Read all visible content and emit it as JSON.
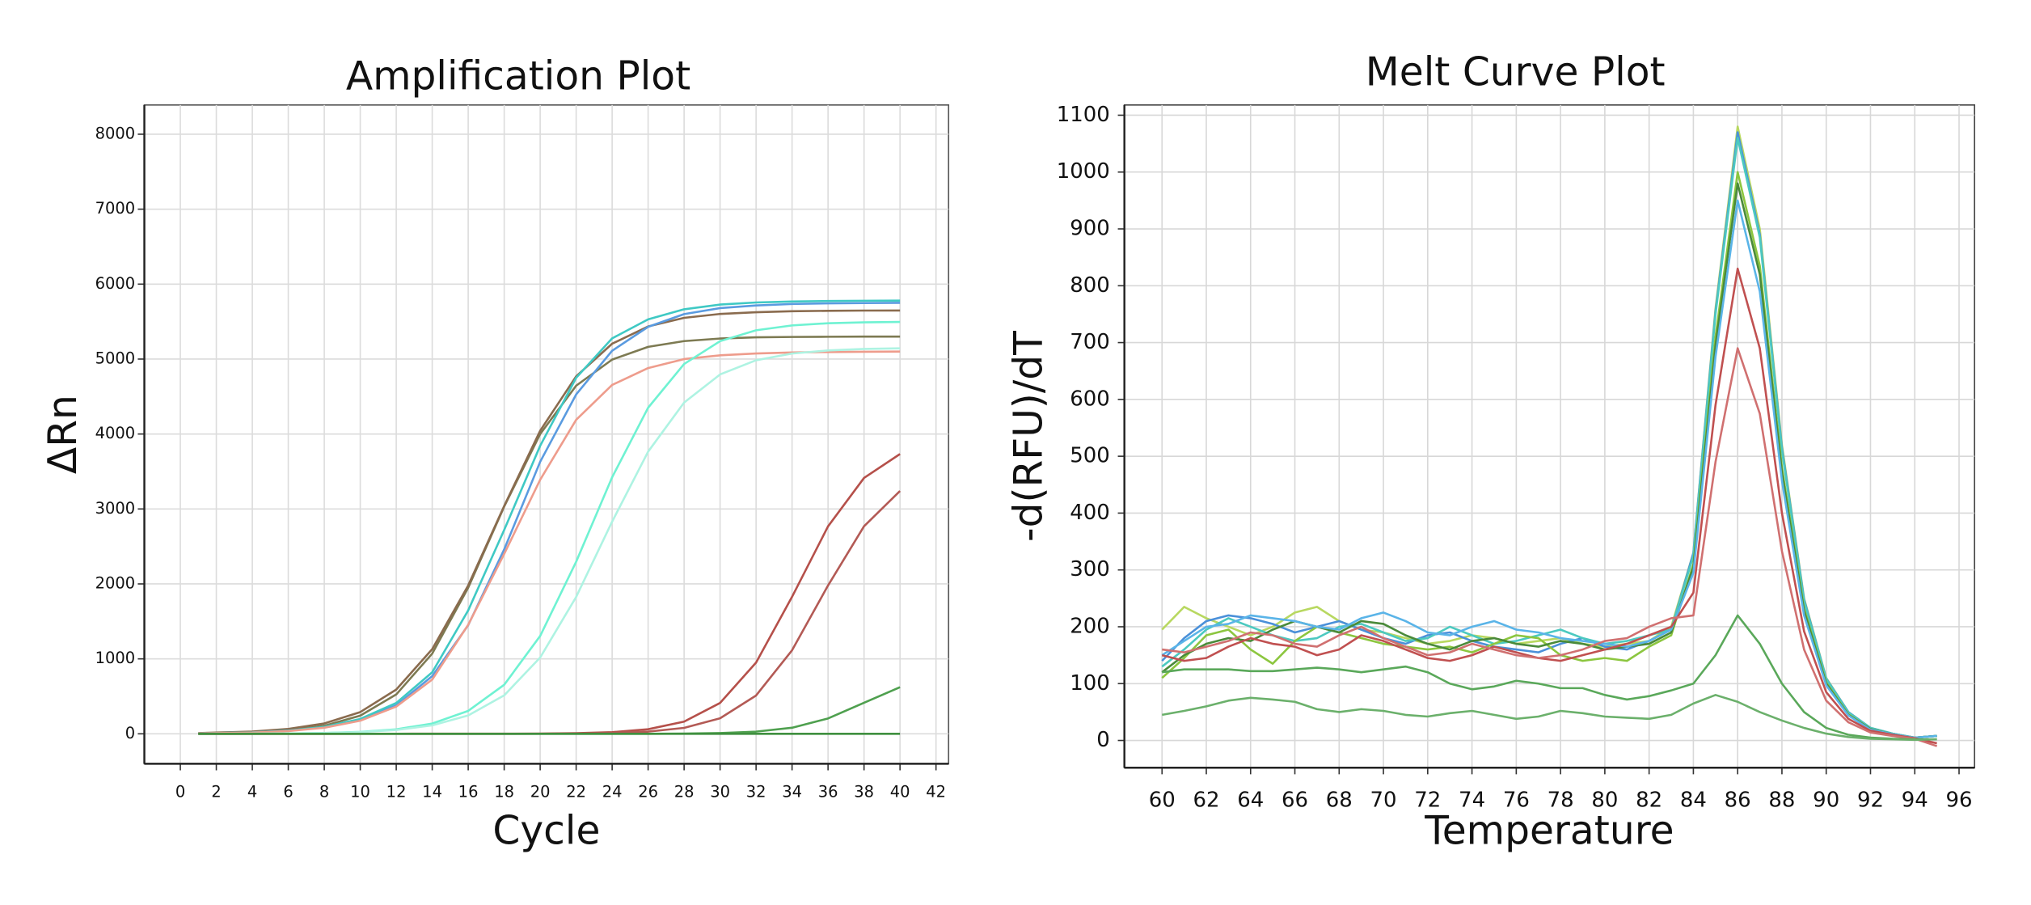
{
  "chart_data": [
    {
      "type": "line",
      "title": "Amplification Plot",
      "x_label": "Cycle",
      "y_label": "ΔRn",
      "x": [
        1,
        4,
        6,
        8,
        10,
        12,
        14,
        16,
        18,
        20,
        22,
        24,
        26,
        28,
        30,
        32,
        34,
        36,
        38,
        40
      ],
      "xlim": [
        -2,
        42.7
      ],
      "ylim": [
        -400,
        8390
      ],
      "xticks": [
        0,
        2,
        4,
        6,
        8,
        10,
        12,
        14,
        16,
        18,
        20,
        22,
        24,
        26,
        28,
        30,
        32,
        34,
        36,
        38,
        40,
        42
      ],
      "yticks": [
        0,
        1000,
        2000,
        3000,
        4000,
        5000,
        6000,
        7000,
        8000
      ],
      "grid": true,
      "series": [
        {
          "color": "#7d7a52",
          "values": [
            6,
            21,
            47,
            108,
            242,
            525,
            1070,
            1950,
            3032,
            4000,
            4645,
            4993,
            5163,
            5240,
            5274,
            5290,
            5295,
            5298,
            5300,
            5300
          ]
        },
        {
          "color": "#8a6b4e",
          "values": [
            10,
            30,
            65,
            138,
            290,
            590,
            1130,
            1980,
            3040,
            4044,
            4770,
            5205,
            5435,
            5550,
            5602,
            5625,
            5638,
            5644,
            5647,
            5648
          ]
        },
        {
          "color": "#5a9be0",
          "values": [
            6,
            18,
            42,
            88,
            185,
            380,
            770,
            1450,
            2460,
            3630,
            4528,
            5111,
            5430,
            5600,
            5680,
            5715,
            5735,
            5743,
            5747,
            5750
          ]
        },
        {
          "color": "#3fc9c4",
          "values": [
            6,
            19,
            42,
            92,
            198,
            411,
            821,
            1647,
            2720,
            3843,
            4750,
            5276,
            5530,
            5664,
            5727,
            5755,
            5768,
            5775,
            5778,
            5780
          ]
        },
        {
          "color": "#ee9c8c",
          "values": [
            5,
            17,
            37,
            81,
            175,
            363,
            724,
            1455,
            2400,
            3390,
            4190,
            4655,
            4880,
            5000,
            5050,
            5075,
            5088,
            5094,
            5097,
            5100
          ]
        },
        {
          "color": "#6ff2d2",
          "values": [
            0,
            2,
            5,
            11,
            26,
            60,
            137,
            306,
            654,
            1306,
            2296,
            3423,
            4351,
            4934,
            5239,
            5384,
            5449,
            5478,
            5490,
            5495
          ]
        },
        {
          "color": "#aef3e2",
          "values": [
            0,
            2,
            5,
            10,
            23,
            51,
            113,
            245,
            513,
            1018,
            1826,
            2831,
            3765,
            4420,
            4795,
            4984,
            5074,
            5115,
            5135,
            5143
          ]
        },
        {
          "color": "#b5504a",
          "values": [
            0,
            0,
            0,
            0,
            1,
            1,
            2,
            2,
            2,
            3,
            8,
            22,
            61,
            163,
            412,
            950,
            1828,
            2768,
            3414,
            3733
          ]
        },
        {
          "color": "#b35a55",
          "values": [
            0,
            0,
            0,
            0,
            0,
            0,
            0,
            0,
            0,
            1,
            4,
            11,
            29,
            79,
            207,
            511,
            1115,
            1979,
            2769,
            3240
          ]
        },
        {
          "color": "#4fa04f",
          "values": [
            0,
            0,
            0,
            0,
            0,
            0,
            0,
            0,
            0,
            0,
            0,
            0,
            0,
            3,
            10,
            29,
            81,
            205,
            415,
            622
          ]
        },
        {
          "color": "#3f8f3f",
          "values": [
            0,
            0,
            0,
            0,
            0,
            0,
            0,
            0,
            0,
            0,
            0,
            0,
            0,
            0,
            0,
            0,
            0,
            0,
            0,
            0
          ]
        }
      ]
    },
    {
      "type": "line",
      "title": "Melt Curve Plot",
      "x_label": "Temperature",
      "y_label": "-d(RFU)/dT",
      "x": [
        60,
        61,
        62,
        63,
        64,
        65,
        66,
        67,
        68,
        69,
        70,
        71,
        72,
        73,
        74,
        75,
        76,
        77,
        78,
        79,
        80,
        81,
        82,
        83,
        84,
        85,
        86,
        87,
        88,
        89,
        90,
        91,
        92,
        93,
        94,
        95
      ],
      "xlim": [
        58.3,
        96.7
      ],
      "ylim": [
        -48,
        1118
      ],
      "xticks": [
        60,
        62,
        64,
        66,
        68,
        70,
        72,
        74,
        76,
        78,
        80,
        82,
        84,
        86,
        88,
        90,
        92,
        94,
        96
      ],
      "yticks": [
        0,
        100,
        200,
        300,
        400,
        500,
        600,
        700,
        800,
        900,
        1000,
        1100
      ],
      "grid": true,
      "series": [
        {
          "color": "#b8d860",
          "values": [
            195,
            235,
            215,
            200,
            185,
            200,
            225,
            235,
            210,
            195,
            190,
            180,
            170,
            175,
            185,
            180,
            170,
            175,
            180,
            170,
            165,
            170,
            175,
            200,
            330,
            760,
            1080,
            900,
            520,
            250,
            110,
            50,
            22,
            12,
            5,
            8
          ]
        },
        {
          "color": "#4a90d9",
          "values": [
            140,
            180,
            210,
            220,
            215,
            205,
            190,
            200,
            210,
            195,
            180,
            170,
            185,
            190,
            175,
            165,
            160,
            155,
            170,
            180,
            165,
            160,
            175,
            195,
            330,
            755,
            1070,
            890,
            515,
            248,
            109,
            50,
            22,
            12,
            5,
            8
          ]
        },
        {
          "color": "#4cc9c0",
          "values": [
            130,
            160,
            195,
            215,
            200,
            185,
            175,
            180,
            200,
            205,
            190,
            175,
            180,
            200,
            185,
            170,
            175,
            185,
            195,
            180,
            170,
            175,
            185,
            195,
            325,
            750,
            1060,
            885,
            510,
            245,
            108,
            49,
            22,
            12,
            5,
            8
          ]
        },
        {
          "color": "#8cc63f",
          "values": [
            110,
            145,
            185,
            195,
            160,
            135,
            175,
            200,
            190,
            180,
            170,
            165,
            160,
            165,
            155,
            170,
            185,
            180,
            150,
            140,
            145,
            140,
            165,
            185,
            310,
            710,
            1000,
            835,
            480,
            232,
            102,
            46,
            20,
            11,
            5,
            8
          ]
        },
        {
          "color": "#4a8a3a",
          "values": [
            120,
            150,
            170,
            180,
            175,
            195,
            210,
            200,
            190,
            210,
            205,
            185,
            170,
            160,
            175,
            180,
            170,
            165,
            175,
            170,
            160,
            165,
            170,
            190,
            305,
            695,
            980,
            820,
            472,
            228,
            100,
            45,
            20,
            11,
            5,
            8
          ]
        },
        {
          "color": "#5ab4e8",
          "values": [
            150,
            175,
            200,
            205,
            220,
            215,
            210,
            200,
            195,
            215,
            225,
            210,
            190,
            185,
            200,
            210,
            195,
            190,
            180,
            175,
            170,
            165,
            175,
            195,
            295,
            675,
            950,
            790,
            457,
            220,
            97,
            44,
            19,
            11,
            5,
            8
          ]
        },
        {
          "color": "#c05050",
          "values": [
            150,
            140,
            145,
            165,
            180,
            170,
            165,
            150,
            160,
            185,
            175,
            160,
            145,
            140,
            150,
            165,
            155,
            145,
            140,
            150,
            160,
            170,
            185,
            200,
            260,
            590,
            830,
            690,
            400,
            192,
            85,
            38,
            17,
            10,
            4,
            -5
          ]
        },
        {
          "color": "#d07070",
          "values": [
            160,
            155,
            165,
            175,
            190,
            185,
            170,
            165,
            185,
            200,
            180,
            165,
            150,
            155,
            170,
            160,
            150,
            145,
            150,
            160,
            175,
            180,
            200,
            215,
            220,
            490,
            690,
            575,
            333,
            160,
            70,
            32,
            14,
            8,
            3,
            -10
          ]
        },
        {
          "color": "#5aa85a",
          "values": [
            120,
            125,
            125,
            125,
            122,
            122,
            125,
            128,
            125,
            120,
            125,
            130,
            120,
            100,
            90,
            95,
            105,
            100,
            92,
            92,
            80,
            72,
            78,
            88,
            100,
            150,
            220,
            170,
            100,
            50,
            22,
            10,
            5,
            3,
            2,
            2
          ]
        },
        {
          "color": "#6bb06b",
          "values": [
            45,
            52,
            60,
            70,
            75,
            72,
            68,
            55,
            50,
            55,
            52,
            45,
            42,
            48,
            52,
            45,
            38,
            42,
            52,
            48,
            42,
            40,
            38,
            45,
            65,
            80,
            68,
            50,
            35,
            22,
            12,
            6,
            3,
            2,
            1,
            2
          ]
        }
      ]
    }
  ]
}
